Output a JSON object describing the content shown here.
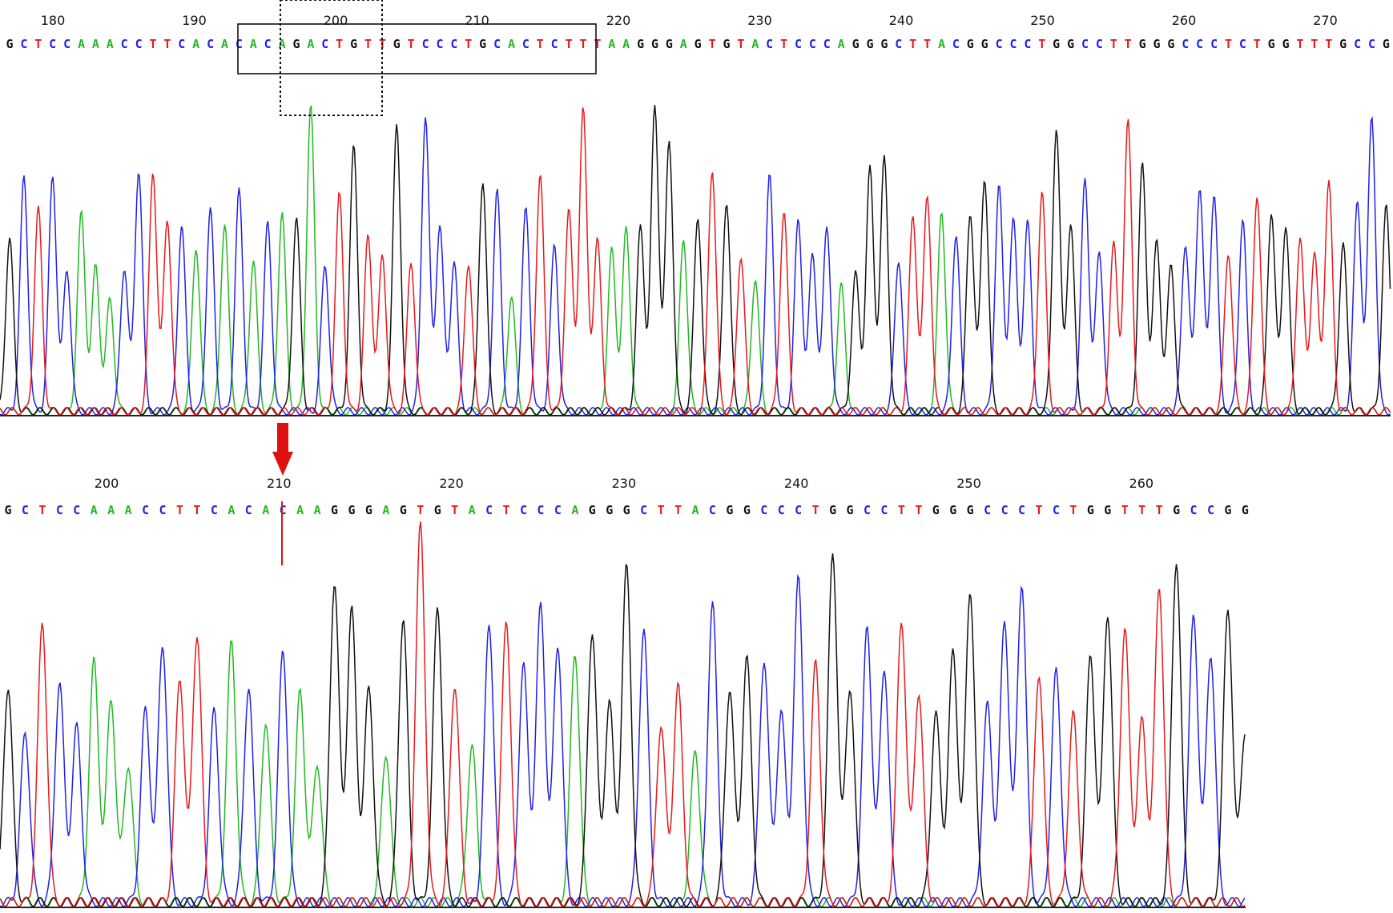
{
  "colors": {
    "A": "#22b922",
    "C": "#2121e8",
    "G": "#111111",
    "T": "#e8191c",
    "marker": "#e01010"
  },
  "chart_data": [
    {
      "type": "line",
      "name": "reference_trace",
      "title": "",
      "xlabel": "",
      "ylabel": "",
      "grid": false,
      "sequence": "GCTCCAAACCTTCACACACAGACTGTTGTCCCTGCACTCTTTAAGGGAGTGTACTCCCAGGGCTTACGGCCCTGGCCTTGGGCCCTCTGGTTTGCCGG",
      "tick_labels": [
        "180",
        "190",
        "200",
        "210",
        "220",
        "230",
        "240",
        "250",
        "260",
        "270"
      ],
      "highlight_solid": "ACAGACTGTTGTCCCTGCACTCTTT",
      "highlight_dashed": "GACTGTT"
    },
    {
      "type": "line",
      "name": "sample_trace",
      "title": "",
      "xlabel": "",
      "ylabel": "",
      "grid": false,
      "sequence": "GCTCCAAACCTTCACACAAGGGAGTGTACTCCCAGGGCTTACGGCCCTGGCCTTGGGCCCTCTGGTTTGCCGG",
      "tick_labels": [
        "200",
        "210",
        "220",
        "230",
        "240",
        "250",
        "260"
      ],
      "annotation": "red arrow marking the deletion junction between C and A after CACAC"
    }
  ]
}
